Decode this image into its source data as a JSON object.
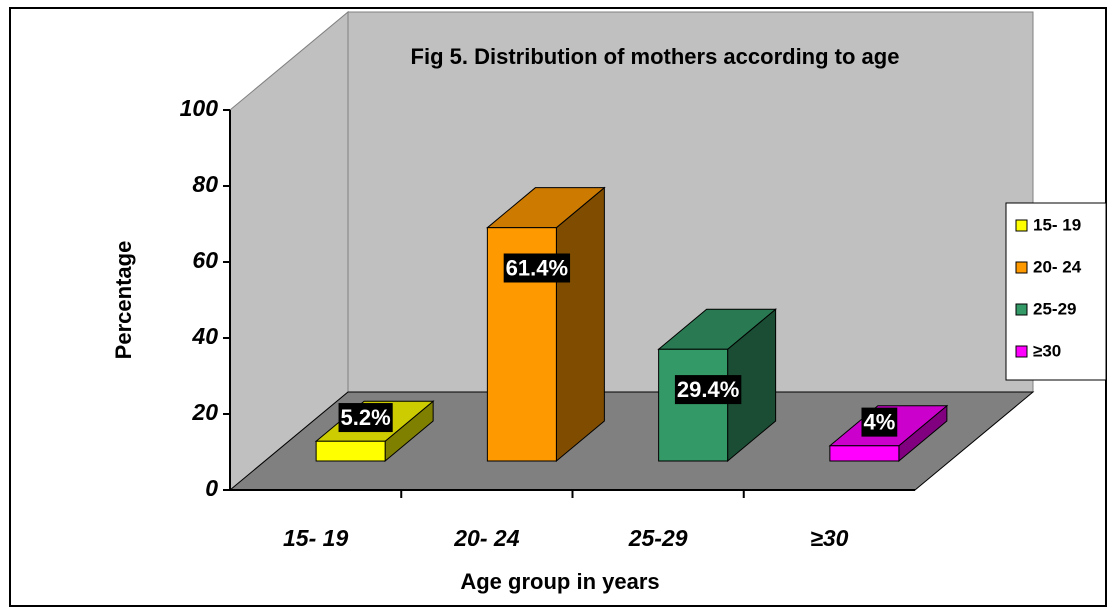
{
  "chart_data": {
    "type": "bar3d",
    "title": "Fig 5. Distribution of mothers according to age",
    "xlabel": "Age group in years",
    "ylabel": "Percentage",
    "categories": [
      "15- 19",
      "20- 24",
      "25-29",
      "≥30"
    ],
    "values": [
      5.2,
      61.4,
      29.4,
      4
    ],
    "value_labels": [
      "5.2%",
      "61.4%",
      "29.4%",
      "4%"
    ],
    "colors": [
      "#ffff00",
      "#ff9900",
      "#339966",
      "#ff00ff"
    ],
    "ylim": [
      0,
      100
    ],
    "yticks": [
      0,
      20,
      40,
      60,
      80,
      100
    ],
    "legend": "right"
  }
}
